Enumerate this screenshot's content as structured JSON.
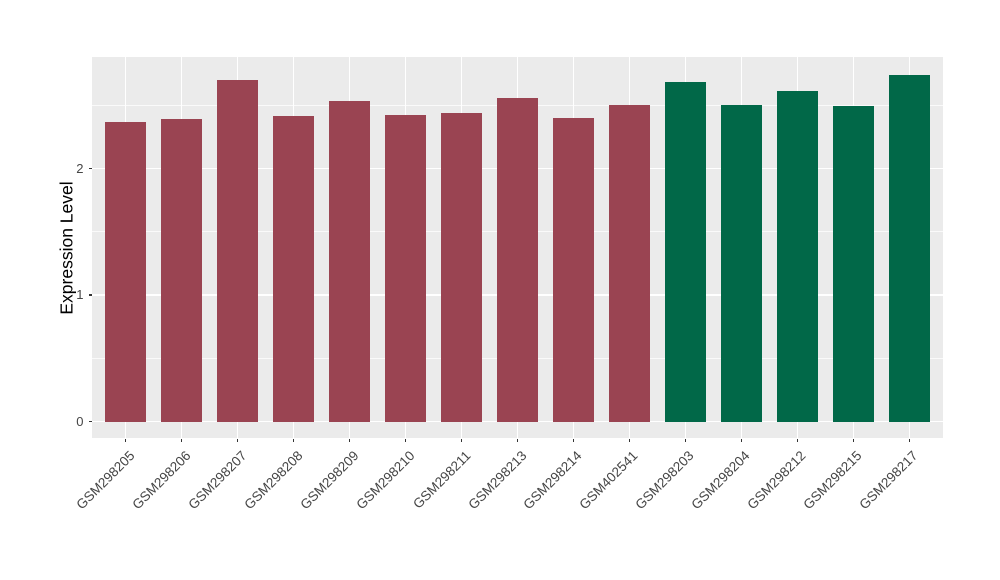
{
  "chart_data": {
    "type": "bar",
    "title": "",
    "xlabel": "",
    "ylabel": "Expression Level",
    "categories": [
      "GSM298205",
      "GSM298206",
      "GSM298207",
      "GSM298208",
      "GSM298209",
      "GSM298210",
      "GSM298211",
      "GSM298213",
      "GSM298214",
      "GSM402541",
      "GSM298203",
      "GSM298204",
      "GSM298212",
      "GSM298215",
      "GSM298217"
    ],
    "values": [
      2.37,
      2.39,
      2.7,
      2.41,
      2.53,
      2.42,
      2.44,
      2.56,
      2.4,
      2.5,
      2.68,
      2.5,
      2.61,
      2.49,
      2.74
    ],
    "groups": [
      "group1",
      "group1",
      "group1",
      "group1",
      "group1",
      "group1",
      "group1",
      "group1",
      "group1",
      "group1",
      "group2",
      "group2",
      "group2",
      "group2",
      "group2"
    ],
    "group_colors": {
      "group1": "#9A4452",
      "group2": "#016848"
    },
    "yticks": [
      0,
      1,
      2
    ],
    "yticks_minor": [
      0.5,
      1.5,
      2.5
    ],
    "ylim": [
      -0.13,
      2.88
    ],
    "grid": true,
    "legend": "none",
    "colors": {
      "panel_bg": "#EBEBEB",
      "grid": "#FFFFFF",
      "tick_text": "#454545",
      "tick_mark": "#333333",
      "axis_title": "#000000"
    }
  }
}
